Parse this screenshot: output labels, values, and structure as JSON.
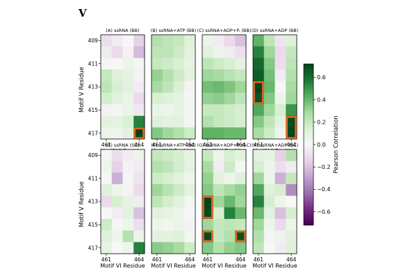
{
  "chart_data": {
    "type": "heatmap",
    "figure_label": "V",
    "row_tick_labels": [
      "409",
      "411",
      "413",
      "415",
      "417"
    ],
    "col_tick_labels": [
      "461",
      "464"
    ],
    "row_residues": [
      409,
      410,
      411,
      412,
      413,
      414,
      415,
      416,
      417
    ],
    "col_residues": [
      461,
      462,
      463,
      464
    ],
    "ylabel": "Motif V Residue",
    "xlabel": "Motif VI Residue",
    "colorbar": {
      "label": "Pearson Correlation",
      "vmin": -0.72,
      "vmax": 0.72,
      "ticks": [
        0.6,
        0.4,
        0.2,
        0.0,
        -0.2,
        -0.4,
        -0.6
      ],
      "tick_labels": [
        "0.6",
        "0.4",
        "0.2",
        "0.0",
        "−0.2",
        "−0.4",
        "−0.6"
      ],
      "colormap": "PRGn"
    },
    "highlight_color": "#e4661e",
    "panels": [
      {
        "title": "(A) ssRNA (BB)",
        "values": [
          [
            -0.1,
            -0.05,
            0.0,
            -0.15
          ],
          [
            -0.05,
            -0.12,
            -0.03,
            -0.22
          ],
          [
            0.02,
            0.0,
            0.05,
            0.02
          ],
          [
            0.2,
            0.12,
            0.08,
            -0.02
          ],
          [
            0.22,
            0.15,
            0.1,
            -0.05
          ],
          [
            0.16,
            0.1,
            0.06,
            -0.12
          ],
          [
            -0.03,
            0.02,
            0.06,
            -0.06
          ],
          [
            0.1,
            0.08,
            0.14,
            0.55
          ],
          [
            0.05,
            0.04,
            0.1,
            0.75
          ]
        ],
        "highlights": [
          {
            "row": 8,
            "col": 3,
            "nrows": 1
          }
        ]
      },
      {
        "title": "(B) ssRNA+ATP (BB)",
        "values": [
          [
            0.25,
            0.22,
            0.2,
            0.12
          ],
          [
            0.22,
            0.22,
            0.18,
            0.1
          ],
          [
            0.2,
            0.18,
            0.14,
            0.08
          ],
          [
            0.32,
            0.25,
            0.18,
            0.1
          ],
          [
            0.28,
            0.22,
            0.14,
            -0.02
          ],
          [
            0.14,
            0.12,
            0.08,
            0.02
          ],
          [
            0.06,
            0.05,
            0.08,
            0.02
          ],
          [
            0.12,
            0.1,
            0.1,
            0.03
          ],
          [
            0.35,
            0.3,
            0.25,
            0.18
          ]
        ],
        "highlights": []
      },
      {
        "title": "(C) ssRNA+ADP+Pᵢ (BB)",
        "values": [
          [
            0.05,
            -0.05,
            -0.12,
            -0.2
          ],
          [
            0.1,
            0.05,
            -0.05,
            -0.1
          ],
          [
            0.22,
            0.18,
            0.15,
            0.1
          ],
          [
            0.3,
            0.28,
            0.24,
            0.2
          ],
          [
            0.38,
            0.4,
            0.36,
            0.3
          ],
          [
            0.32,
            0.34,
            0.3,
            0.22
          ],
          [
            0.2,
            0.2,
            0.18,
            0.15
          ],
          [
            0.25,
            0.2,
            0.18,
            0.15
          ],
          [
            0.42,
            0.42,
            0.4,
            0.4
          ]
        ],
        "highlights": []
      },
      {
        "title": "(D) ssRNA+ADP (BB)",
        "values": [
          [
            0.42,
            0.22,
            -0.08,
            0.12
          ],
          [
            0.55,
            0.3,
            -0.12,
            0.2
          ],
          [
            0.62,
            0.35,
            -0.1,
            0.22
          ],
          [
            0.65,
            0.38,
            -0.05,
            0.25
          ],
          [
            0.72,
            0.4,
            0.0,
            0.28
          ],
          [
            0.68,
            0.35,
            0.05,
            0.3
          ],
          [
            0.45,
            0.3,
            0.15,
            0.5
          ],
          [
            0.35,
            0.22,
            0.1,
            0.7
          ],
          [
            0.28,
            0.18,
            0.05,
            0.72
          ]
        ],
        "highlights": [
          {
            "row": 4,
            "col": 0,
            "nrows": 2
          },
          {
            "row": 7,
            "col": 3,
            "nrows": 2
          }
        ]
      },
      {
        "title": "(E) ssRNA (SC)",
        "values": [
          [
            0.02,
            -0.1,
            -0.05,
            0.05
          ],
          [
            0.05,
            -0.15,
            -0.02,
            -0.05
          ],
          [
            0.0,
            -0.25,
            0.02,
            -0.08
          ],
          [
            0.12,
            0.05,
            -0.02,
            -0.12
          ],
          [
            -0.12,
            0.15,
            0.08,
            -0.05
          ],
          [
            0.0,
            -0.05,
            0.1,
            -0.2
          ],
          [
            0.18,
            0.02,
            0.05,
            -0.1
          ],
          [
            0.12,
            0.05,
            0.25,
            0.05
          ],
          [
            0.08,
            0.0,
            0.05,
            0.55
          ]
        ],
        "highlights": []
      },
      {
        "title": "(F) ssRNA+ATP (SC)",
        "values": [
          [
            0.2,
            0.18,
            0.15,
            0.08
          ],
          [
            0.25,
            0.22,
            0.16,
            0.08
          ],
          [
            0.18,
            0.15,
            0.1,
            0.04
          ],
          [
            0.3,
            0.24,
            0.18,
            0.1
          ],
          [
            0.22,
            0.16,
            0.1,
            0.02
          ],
          [
            0.1,
            0.08,
            0.06,
            0.0
          ],
          [
            0.05,
            0.03,
            0.06,
            -0.02
          ],
          [
            0.1,
            0.1,
            0.12,
            0.02
          ],
          [
            0.34,
            0.32,
            0.28,
            0.18
          ]
        ],
        "highlights": []
      },
      {
        "title": "(G) ssRNA+ADP+Pᵢ (SC)",
        "values": [
          [
            0.2,
            0.05,
            0.15,
            0.1
          ],
          [
            0.28,
            -0.05,
            0.18,
            0.02
          ],
          [
            0.32,
            0.1,
            0.05,
            0.12
          ],
          [
            0.35,
            0.22,
            0.28,
            0.32
          ],
          [
            0.72,
            0.3,
            0.4,
            0.3
          ],
          [
            0.7,
            0.15,
            0.55,
            0.4
          ],
          [
            0.3,
            0.2,
            0.22,
            0.2
          ],
          [
            0.7,
            0.2,
            0.25,
            0.68
          ],
          [
            0.35,
            0.25,
            0.32,
            0.35
          ]
        ],
        "highlights": [
          {
            "row": 4,
            "col": 0,
            "nrows": 2
          },
          {
            "row": 7,
            "col": 0,
            "nrows": 1
          },
          {
            "row": 7,
            "col": 3,
            "nrows": 1
          }
        ]
      },
      {
        "title": "(H) ssRNA+ADP (SC)",
        "values": [
          [
            0.1,
            0.08,
            -0.15,
            0.25
          ],
          [
            0.15,
            0.05,
            -0.1,
            -0.05
          ],
          [
            0.3,
            0.05,
            -0.25,
            0.2
          ],
          [
            0.45,
            0.12,
            0.15,
            -0.35
          ],
          [
            0.55,
            0.15,
            0.05,
            0.0
          ],
          [
            0.4,
            0.1,
            -0.2,
            0.15
          ],
          [
            0.3,
            0.05,
            -0.12,
            0.05
          ],
          [
            0.25,
            0.02,
            0.05,
            0.1
          ],
          [
            0.22,
            0.0,
            -0.05,
            0.12
          ]
        ],
        "highlights": []
      }
    ]
  }
}
